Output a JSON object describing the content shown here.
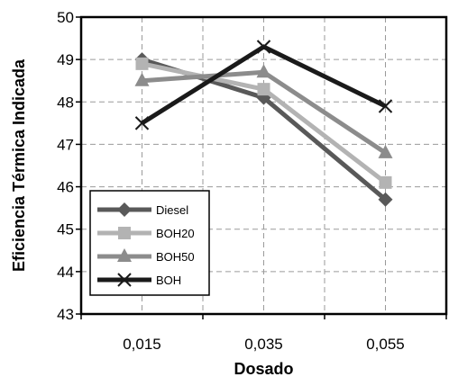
{
  "chart_data": {
    "type": "line",
    "xlabel": "Dosado",
    "ylabel": "Eficiencia Térmica Indicada",
    "categories": [
      "0,015",
      "0,035",
      "0,055"
    ],
    "ylim": [
      43,
      50
    ],
    "yticks": [
      "43",
      "44",
      "45",
      "46",
      "47",
      "48",
      "49",
      "50"
    ],
    "grid": true,
    "legend_position": "bottom-left",
    "series": [
      {
        "name": "Diesel",
        "values": [
          49.0,
          48.1,
          45.7
        ],
        "color": "#595959",
        "marker": "diamond"
      },
      {
        "name": "BOH20",
        "values": [
          48.9,
          48.3,
          46.1
        ],
        "color": "#b3b3b3",
        "marker": "square"
      },
      {
        "name": "BOH50",
        "values": [
          48.5,
          48.7,
          46.8
        ],
        "color": "#8c8c8c",
        "marker": "triangle"
      },
      {
        "name": "BOH",
        "values": [
          47.5,
          49.3,
          47.9
        ],
        "color": "#1a1a1a",
        "marker": "x"
      }
    ]
  }
}
